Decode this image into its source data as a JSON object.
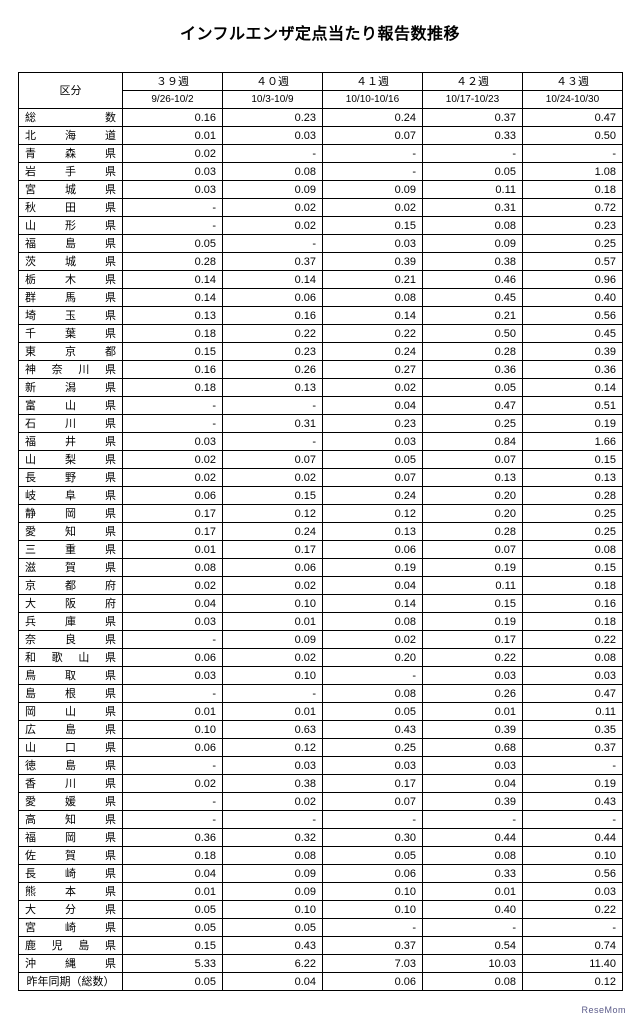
{
  "title": "インフルエンザ定点当たり報告数推移",
  "header": {
    "region_label": "区分",
    "weeks": [
      {
        "no": "３９週",
        "range": "9/26-10/2"
      },
      {
        "no": "４０週",
        "range": "10/3-10/9"
      },
      {
        "no": "４１週",
        "range": "10/10-10/16"
      },
      {
        "no": "４２週",
        "range": "10/17-10/23"
      },
      {
        "no": "４３週",
        "range": "10/24-10/30"
      }
    ]
  },
  "total": {
    "label": "総数",
    "values": [
      "0.16",
      "0.23",
      "0.24",
      "0.37",
      "0.47"
    ]
  },
  "rows": [
    {
      "region": "北海道",
      "v": [
        "0.01",
        "0.03",
        "0.07",
        "0.33",
        "0.50"
      ]
    },
    {
      "region": "青森県",
      "v": [
        "0.02",
        "-",
        "-",
        "-",
        "-"
      ]
    },
    {
      "region": "岩手県",
      "v": [
        "0.03",
        "0.08",
        "-",
        "0.05",
        "1.08"
      ]
    },
    {
      "region": "宮城県",
      "v": [
        "0.03",
        "0.09",
        "0.09",
        "0.11",
        "0.18"
      ]
    },
    {
      "region": "秋田県",
      "v": [
        "-",
        "0.02",
        "0.02",
        "0.31",
        "0.72"
      ]
    },
    {
      "region": "山形県",
      "v": [
        "-",
        "0.02",
        "0.15",
        "0.08",
        "0.23"
      ]
    },
    {
      "region": "福島県",
      "v": [
        "0.05",
        "-",
        "0.03",
        "0.09",
        "0.25"
      ]
    },
    {
      "region": "茨城県",
      "v": [
        "0.28",
        "0.37",
        "0.39",
        "0.38",
        "0.57"
      ]
    },
    {
      "region": "栃木県",
      "v": [
        "0.14",
        "0.14",
        "0.21",
        "0.46",
        "0.96"
      ]
    },
    {
      "region": "群馬県",
      "v": [
        "0.14",
        "0.06",
        "0.08",
        "0.45",
        "0.40"
      ]
    },
    {
      "region": "埼玉県",
      "v": [
        "0.13",
        "0.16",
        "0.14",
        "0.21",
        "0.56"
      ]
    },
    {
      "region": "千葉県",
      "v": [
        "0.18",
        "0.22",
        "0.22",
        "0.50",
        "0.45"
      ]
    },
    {
      "region": "東京都",
      "v": [
        "0.15",
        "0.23",
        "0.24",
        "0.28",
        "0.39"
      ]
    },
    {
      "region": "神奈川県",
      "v": [
        "0.16",
        "0.26",
        "0.27",
        "0.36",
        "0.36"
      ]
    },
    {
      "region": "新潟県",
      "v": [
        "0.18",
        "0.13",
        "0.02",
        "0.05",
        "0.14"
      ]
    },
    {
      "region": "富山県",
      "v": [
        "-",
        "-",
        "0.04",
        "0.47",
        "0.51"
      ]
    },
    {
      "region": "石川県",
      "v": [
        "-",
        "0.31",
        "0.23",
        "0.25",
        "0.19"
      ]
    },
    {
      "region": "福井県",
      "v": [
        "0.03",
        "-",
        "0.03",
        "0.84",
        "1.66"
      ]
    },
    {
      "region": "山梨県",
      "v": [
        "0.02",
        "0.07",
        "0.05",
        "0.07",
        "0.15"
      ]
    },
    {
      "region": "長野県",
      "v": [
        "0.02",
        "0.02",
        "0.07",
        "0.13",
        "0.13"
      ]
    },
    {
      "region": "岐阜県",
      "v": [
        "0.06",
        "0.15",
        "0.24",
        "0.20",
        "0.28"
      ]
    },
    {
      "region": "静岡県",
      "v": [
        "0.17",
        "0.12",
        "0.12",
        "0.20",
        "0.25"
      ]
    },
    {
      "region": "愛知県",
      "v": [
        "0.17",
        "0.24",
        "0.13",
        "0.28",
        "0.25"
      ]
    },
    {
      "region": "三重県",
      "v": [
        "0.01",
        "0.17",
        "0.06",
        "0.07",
        "0.08"
      ]
    },
    {
      "region": "滋賀県",
      "v": [
        "0.08",
        "0.06",
        "0.19",
        "0.19",
        "0.15"
      ]
    },
    {
      "region": "京都府",
      "v": [
        "0.02",
        "0.02",
        "0.04",
        "0.11",
        "0.18"
      ]
    },
    {
      "region": "大阪府",
      "v": [
        "0.04",
        "0.10",
        "0.14",
        "0.15",
        "0.16"
      ]
    },
    {
      "region": "兵庫県",
      "v": [
        "0.03",
        "0.01",
        "0.08",
        "0.19",
        "0.18"
      ]
    },
    {
      "region": "奈良県",
      "v": [
        "-",
        "0.09",
        "0.02",
        "0.17",
        "0.22"
      ]
    },
    {
      "region": "和歌山県",
      "v": [
        "0.06",
        "0.02",
        "0.20",
        "0.22",
        "0.08"
      ]
    },
    {
      "region": "鳥取県",
      "v": [
        "0.03",
        "0.10",
        "-",
        "0.03",
        "0.03"
      ]
    },
    {
      "region": "島根県",
      "v": [
        "-",
        "-",
        "0.08",
        "0.26",
        "0.47"
      ]
    },
    {
      "region": "岡山県",
      "v": [
        "0.01",
        "0.01",
        "0.05",
        "0.01",
        "0.11"
      ]
    },
    {
      "region": "広島県",
      "v": [
        "0.10",
        "0.63",
        "0.43",
        "0.39",
        "0.35"
      ]
    },
    {
      "region": "山口県",
      "v": [
        "0.06",
        "0.12",
        "0.25",
        "0.68",
        "0.37"
      ]
    },
    {
      "region": "徳島県",
      "v": [
        "-",
        "0.03",
        "0.03",
        "0.03",
        "-"
      ]
    },
    {
      "region": "香川県",
      "v": [
        "0.02",
        "0.38",
        "0.17",
        "0.04",
        "0.19"
      ]
    },
    {
      "region": "愛媛県",
      "v": [
        "-",
        "0.02",
        "0.07",
        "0.39",
        "0.43"
      ]
    },
    {
      "region": "高知県",
      "v": [
        "-",
        "-",
        "-",
        "-",
        "-"
      ]
    },
    {
      "region": "福岡県",
      "v": [
        "0.36",
        "0.32",
        "0.30",
        "0.44",
        "0.44"
      ]
    },
    {
      "region": "佐賀県",
      "v": [
        "0.18",
        "0.08",
        "0.05",
        "0.08",
        "0.10"
      ]
    },
    {
      "region": "長崎県",
      "v": [
        "0.04",
        "0.09",
        "0.06",
        "0.33",
        "0.56"
      ]
    },
    {
      "region": "熊本県",
      "v": [
        "0.01",
        "0.09",
        "0.10",
        "0.01",
        "0.03"
      ]
    },
    {
      "region": "大分県",
      "v": [
        "0.05",
        "0.10",
        "0.10",
        "0.40",
        "0.22"
      ]
    },
    {
      "region": "宮崎県",
      "v": [
        "0.05",
        "0.05",
        "-",
        "-",
        "-"
      ]
    },
    {
      "region": "鹿児島県",
      "v": [
        "0.15",
        "0.43",
        "0.37",
        "0.54",
        "0.74"
      ]
    },
    {
      "region": "沖縄県",
      "v": [
        "5.33",
        "6.22",
        "7.03",
        "10.03",
        "11.40"
      ]
    }
  ],
  "footer_row": {
    "label": "昨年同期（総数）",
    "v": [
      "0.05",
      "0.04",
      "0.06",
      "0.08",
      "0.12"
    ]
  },
  "brand_mark": "ReseMom"
}
